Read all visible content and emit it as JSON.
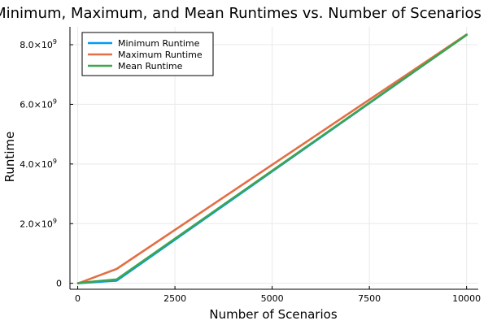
{
  "chart_data": {
    "type": "line",
    "title": "Minimum, Maximum, and Mean Runtimes vs. Number of Scenarios",
    "xlabel": "Number of Scenarios",
    "ylabel": "Runtime",
    "xlim": [
      -200,
      10300
    ],
    "ylim": [
      -200000000,
      8600000000
    ],
    "xticks": [
      0,
      2500,
      5000,
      7500,
      10000
    ],
    "xtick_labels": [
      "0",
      "2500",
      "5000",
      "7500",
      "10000"
    ],
    "yticks": [
      0,
      2000000000,
      4000000000,
      6000000000,
      8000000000
    ],
    "ytick_labels": [
      {
        "mantissa": "0",
        "exp": ""
      },
      {
        "mantissa": "2.0×10",
        "exp": "9"
      },
      {
        "mantissa": "4.0×10",
        "exp": "9"
      },
      {
        "mantissa": "6.0×10",
        "exp": "9"
      },
      {
        "mantissa": "8.0×10",
        "exp": "9"
      }
    ],
    "grid": true,
    "legend_position": "top-left",
    "series": [
      {
        "name": "Minimum Runtime",
        "color": "#009AFA",
        "x": [
          10,
          100,
          1000,
          10000
        ],
        "y": [
          1000000,
          10000000,
          90000000,
          8330000000
        ]
      },
      {
        "name": "Maximum Runtime",
        "color": "#E26F46",
        "x": [
          10,
          100,
          1000,
          10000
        ],
        "y": [
          3000000,
          40000000,
          480000000,
          8340000000
        ]
      },
      {
        "name": "Mean Runtime",
        "color": "#3EA44E",
        "x": [
          10,
          100,
          1000,
          10000
        ],
        "y": [
          2000000,
          20000000,
          130000000,
          8330000000
        ]
      }
    ]
  }
}
